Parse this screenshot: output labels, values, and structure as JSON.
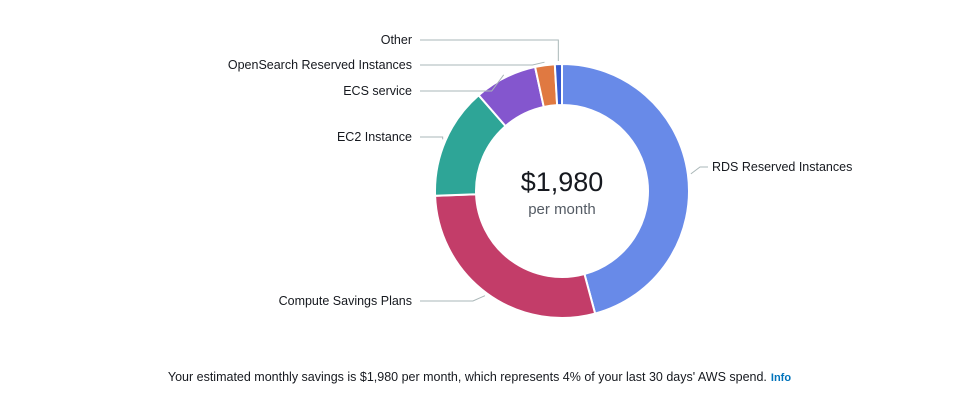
{
  "chart_data": {
    "type": "pie",
    "center": {
      "value": "$1,980",
      "unit": "per month"
    },
    "slices": [
      {
        "label": "RDS Reserved Instances",
        "value": 0.458,
        "color": "#688ae8"
      },
      {
        "label": "Compute Savings Plans",
        "value": 0.286,
        "color": "#c33d69"
      },
      {
        "label": "EC2 Instance",
        "value": 0.142,
        "color": "#2ea597"
      },
      {
        "label": "ECS service",
        "value": 0.08,
        "color": "#8456ce"
      },
      {
        "label": "OpenSearch Reserved Instances",
        "value": 0.025,
        "color": "#e07941"
      },
      {
        "label": "Other",
        "value": 0.009,
        "color": "#3759ce"
      }
    ]
  },
  "footer": {
    "text": "Your estimated monthly savings is $1,980 per month, which represents 4% of your last 30 days' AWS spend.",
    "info_link": "Info"
  }
}
